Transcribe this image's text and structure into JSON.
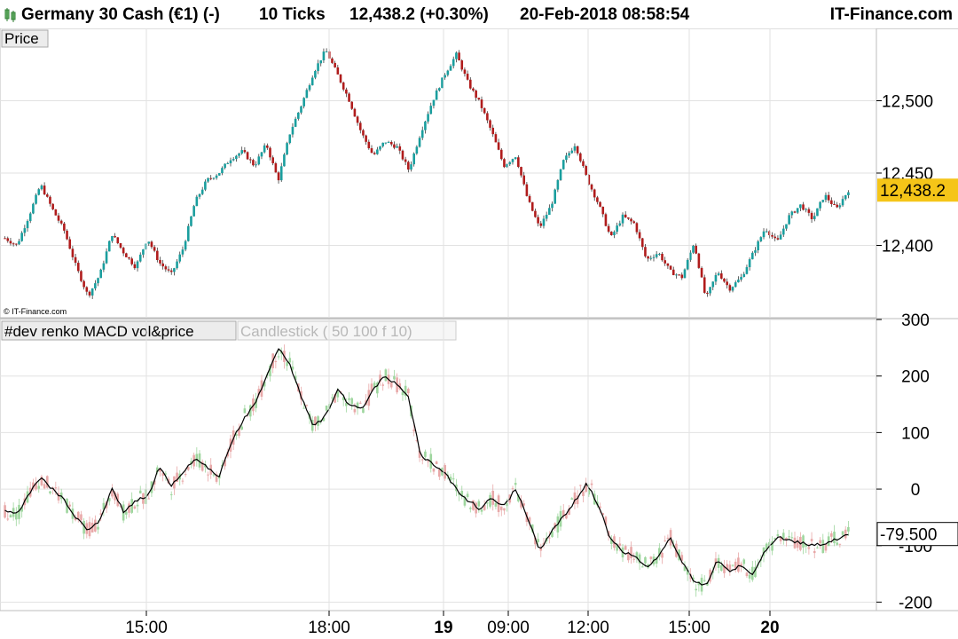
{
  "header": {
    "instrument": "Germany 30 Cash (€1) (-)",
    "interval": "10 Ticks",
    "last_change": "12,438.2 (+0.30%)",
    "datetime": "20-Feb-2018 08:58:54",
    "brand": "IT-Finance.com",
    "icon": "candlestick-icon"
  },
  "price_panel": {
    "label": "Price",
    "copyright": "© IT-Finance.com",
    "last_price_tag": "12,438.2",
    "tag_color": "#f5c518",
    "up_color": "#1a9e9e",
    "down_color": "#b01c1c"
  },
  "indicator_panel": {
    "label": "#dev renko MACD vol&price",
    "sublabel": "Candlestick ( 50 100 f 10)",
    "last_value_tag": "-79.500",
    "line_color": "#000000",
    "up_color": "#9ed69e",
    "down_color": "#e8a8a8"
  },
  "x_axis": {
    "ticks": [
      {
        "label": "15:00",
        "bold": false
      },
      {
        "label": "18:00",
        "bold": false
      },
      {
        "label": "19",
        "bold": true
      },
      {
        "label": "09:00",
        "bold": false
      },
      {
        "label": "12:00",
        "bold": false
      },
      {
        "label": "15:00",
        "bold": false
      },
      {
        "label": "20",
        "bold": true
      }
    ]
  },
  "chart_data": [
    {
      "type": "candlestick",
      "title": "Price",
      "ylim": [
        12350,
        12550
      ],
      "y_ticks": [
        12400,
        12450,
        12500
      ],
      "y_tick_labels": [
        "12,400",
        "12,450",
        "12,500"
      ],
      "grid": true,
      "last_value": 12438.2,
      "close_path": [
        12405,
        12400,
        12420,
        12442,
        12425,
        12410,
        12385,
        12365,
        12380,
        12408,
        12395,
        12385,
        12405,
        12388,
        12380,
        12398,
        12430,
        12445,
        12450,
        12460,
        12465,
        12455,
        12470,
        12445,
        12478,
        12498,
        12520,
        12535,
        12518,
        12500,
        12478,
        12462,
        12472,
        12468,
        12452,
        12478,
        12500,
        12518,
        12532,
        12512,
        12498,
        12478,
        12455,
        12462,
        12432,
        12412,
        12428,
        12458,
        12470,
        12446,
        12428,
        12405,
        12420,
        12415,
        12390,
        12395,
        12382,
        12378,
        12402,
        12363,
        12382,
        12370,
        12378,
        12395,
        12412,
        12402,
        12420,
        12428,
        12418,
        12435,
        12425,
        12438.2
      ]
    },
    {
      "type": "candlestick",
      "title": "#dev renko MACD vol&price",
      "ylim": [
        -215,
        300
      ],
      "y_ticks": [
        -200,
        -100,
        0,
        100,
        200,
        300
      ],
      "y_tick_labels": [
        "-200",
        "-100",
        "0",
        "100",
        "200",
        "300"
      ],
      "grid": true,
      "last_value": -79.5,
      "line_path": [
        -40,
        -45,
        -10,
        20,
        0,
        -20,
        -50,
        -75,
        -55,
        0,
        -40,
        -20,
        -15,
        40,
        5,
        30,
        55,
        40,
        20,
        80,
        120,
        150,
        200,
        250,
        220,
        160,
        110,
        130,
        175,
        150,
        140,
        175,
        200,
        185,
        160,
        60,
        45,
        30,
        0,
        -20,
        -35,
        -15,
        -30,
        0,
        -50,
        -110,
        -75,
        -50,
        -20,
        10,
        -30,
        -90,
        -110,
        -120,
        -140,
        -120,
        -85,
        -130,
        -165,
        -170,
        -125,
        -145,
        -135,
        -150,
        -110,
        -85,
        -90,
        -95,
        -100,
        -95,
        -90,
        -79.5
      ]
    }
  ]
}
